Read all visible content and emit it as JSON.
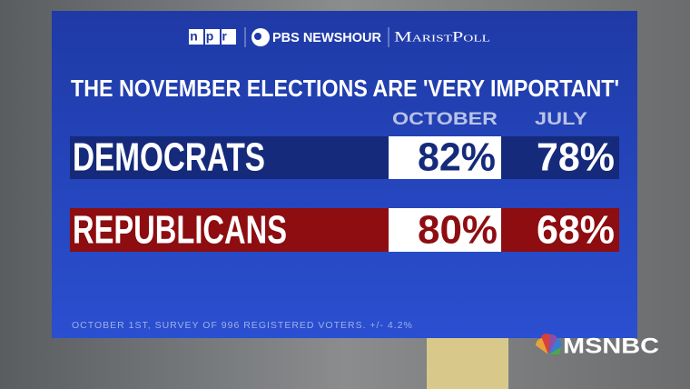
{
  "header": {
    "logos": [
      "npr",
      "PBS NEWSHOUR",
      "MaristPoll"
    ]
  },
  "title": "THE NOVEMBER ELECTIONS ARE 'VERY IMPORTANT'",
  "table": {
    "columns": [
      "OCTOBER",
      "JULY"
    ],
    "rows": [
      [
        "DEMOCRATS",
        "82%",
        "78%"
      ],
      [
        "REPUBLICANS",
        "80%",
        "68%"
      ]
    ]
  },
  "footnote": "OCTOBER 1ST, SURVEY OF 996 REGISTERED VOTERS. +/- 4.2%",
  "network": "MSNBC"
}
